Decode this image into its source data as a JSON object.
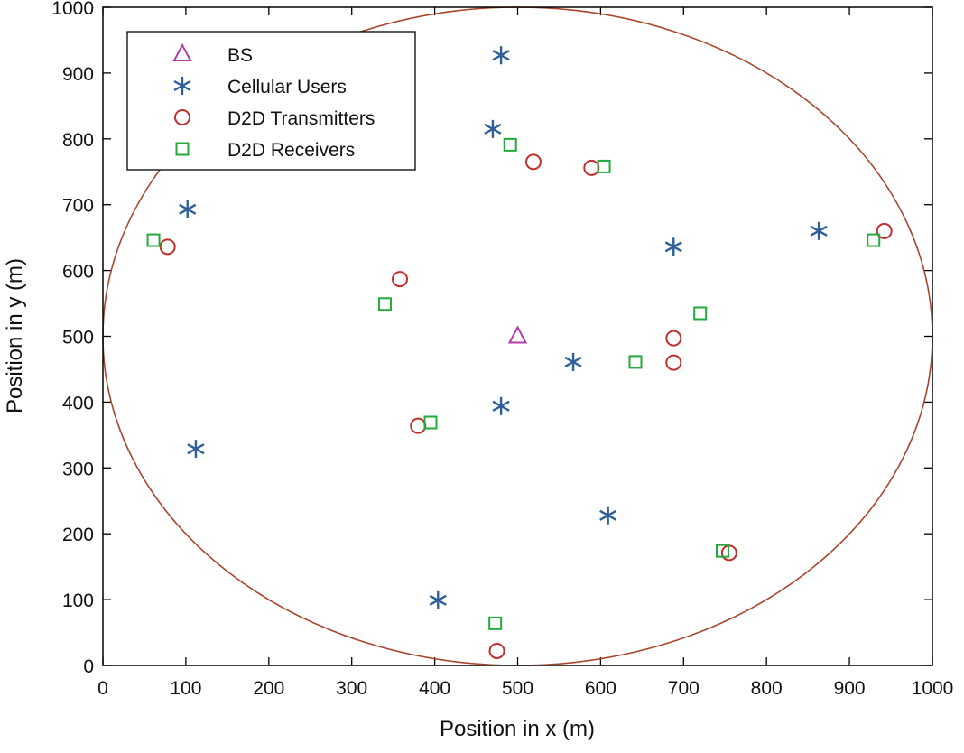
{
  "chart_data": {
    "type": "scatter",
    "title": "",
    "xlabel": "Position in x (m)",
    "ylabel": "Position in y (m)",
    "xlim": [
      0,
      1000
    ],
    "ylim": [
      0,
      1000
    ],
    "xticks": [
      "0",
      "100",
      "200",
      "300",
      "400",
      "500",
      "600",
      "700",
      "800",
      "900",
      "1000"
    ],
    "yticks": [
      "0",
      "100",
      "200",
      "300",
      "400",
      "500",
      "600",
      "700",
      "800",
      "900",
      "1000"
    ],
    "grid": false,
    "legend_position": "top-left",
    "coverage_circle": {
      "center": [
        500,
        500
      ],
      "radius": 500,
      "color": "#a8452c"
    },
    "series": [
      {
        "name": "BS",
        "marker": "triangle",
        "color": "#b03ca8",
        "points": [
          [
            500,
            500
          ]
        ]
      },
      {
        "name": "Cellular Users",
        "marker": "asterisk",
        "color": "#2f5f98",
        "points": [
          [
            480,
            927
          ],
          [
            470,
            815
          ],
          [
            102,
            693
          ],
          [
            688,
            636
          ],
          [
            863,
            660
          ],
          [
            567,
            461
          ],
          [
            480,
            394
          ],
          [
            112,
            329
          ],
          [
            609,
            228
          ],
          [
            404,
            99
          ]
        ]
      },
      {
        "name": "D2D Transmitters",
        "marker": "circle",
        "color": "#c0302c",
        "points": [
          [
            519,
            765
          ],
          [
            589,
            756
          ],
          [
            78,
            636
          ],
          [
            358,
            587
          ],
          [
            688,
            497
          ],
          [
            688,
            460
          ],
          [
            380,
            364
          ],
          [
            942,
            660
          ],
          [
            755,
            171
          ],
          [
            475,
            22
          ]
        ]
      },
      {
        "name": "D2D Receivers",
        "marker": "square",
        "color": "#22aa3a",
        "points": [
          [
            491,
            791
          ],
          [
            604,
            758
          ],
          [
            61,
            646
          ],
          [
            929,
            646
          ],
          [
            340,
            549
          ],
          [
            720,
            535
          ],
          [
            642,
            461
          ],
          [
            395,
            369
          ],
          [
            747,
            174
          ],
          [
            473,
            64
          ]
        ]
      }
    ]
  }
}
